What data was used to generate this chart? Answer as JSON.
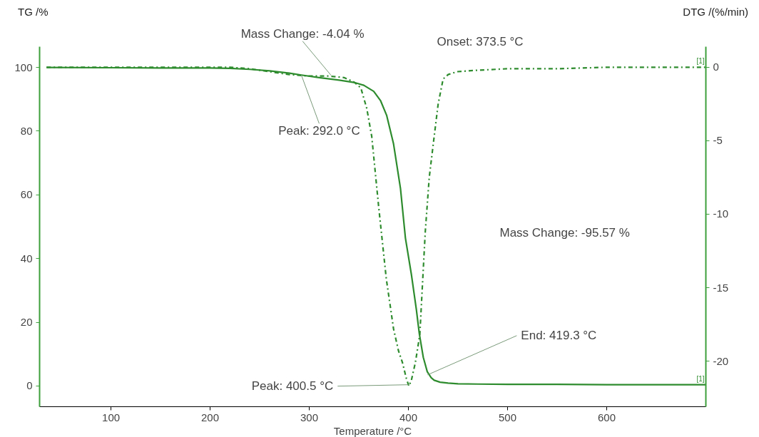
{
  "chart_data": {
    "type": "line",
    "xlabel": "Temperature /°C",
    "ylabel": "TG /%",
    "y2label": "DTG /(%/min)",
    "xlim": [
      28,
      700
    ],
    "xticks": [
      100,
      200,
      300,
      400,
      500,
      600
    ],
    "ylim": [
      -6.5,
      106.5
    ],
    "yticks": [
      0,
      20,
      40,
      60,
      80,
      100
    ],
    "y2lim": [
      -23.1,
      1.4
    ],
    "y2ticks": [
      0,
      -5,
      -10,
      -15,
      -20
    ],
    "grid": false,
    "legend": false,
    "marker": "none",
    "series": [
      {
        "name": "[1]",
        "color": "#2e8b2e",
        "line_style": "solid",
        "x": [
          35,
          100,
          150,
          200,
          220,
          240,
          260,
          280,
          292,
          310,
          330,
          345,
          355,
          365,
          372,
          378,
          385,
          392,
          397,
          403,
          408,
          411,
          415,
          419,
          423,
          426,
          432,
          440,
          450,
          470,
          500,
          550,
          600,
          650,
          700
        ],
        "values": [
          100,
          99.9,
          99.8,
          99.8,
          99.7,
          99.4,
          98.9,
          98.2,
          97.6,
          96.8,
          96.0,
          95.3,
          94.4,
          92.5,
          89.5,
          85,
          76,
          62,
          46.4,
          35,
          24,
          16.4,
          9,
          4.5,
          2.6,
          1.8,
          1.2,
          0.9,
          0.7,
          0.6,
          0.5,
          0.5,
          0.4,
          0.4,
          0.4
        ]
      },
      {
        "name": "[1]",
        "color": "#2e8b2e",
        "line_style": "dashdot",
        "axis": "y2",
        "x": [
          35,
          100,
          150,
          200,
          220,
          240,
          260,
          280,
          300,
          320,
          335,
          345,
          352,
          358,
          363,
          370,
          377.7,
          385,
          390,
          394,
          398,
          400.5,
          403,
          407,
          411.5,
          414,
          417,
          421,
          426,
          430,
          435,
          440,
          449,
          470,
          500,
          550,
          600,
          650,
          700
        ],
        "values": [
          0,
          0,
          0,
          0,
          0,
          -0.1,
          -0.3,
          -0.5,
          -0.6,
          -0.6,
          -0.7,
          -1.0,
          -1.4,
          -2.8,
          -4.7,
          -9.5,
          -14.4,
          -17.8,
          -19.3,
          -20.1,
          -21.2,
          -21.7,
          -21.3,
          -20.1,
          -18.2,
          -15.0,
          -11.2,
          -7.5,
          -4.7,
          -2.5,
          -0.8,
          -0.5,
          -0.3,
          -0.2,
          -0.1,
          -0.1,
          0,
          0,
          0
        ]
      }
    ],
    "annotations": [
      {
        "text": "Mass Change: -4.04 %",
        "x": 322,
        "y": 97.5
      },
      {
        "text": "Peak: 292.0 °C",
        "x": 292,
        "y": 97.6
      },
      "Onset: 373.5 °C",
      {
        "text": "Peak: 400.5 °C",
        "x": 400.5,
        "y": 0.4
      },
      {
        "text": "End: 419.3 °C",
        "x": 419.3,
        "y": 3.5
      },
      "Mass Change: -95.57 %"
    ]
  }
}
